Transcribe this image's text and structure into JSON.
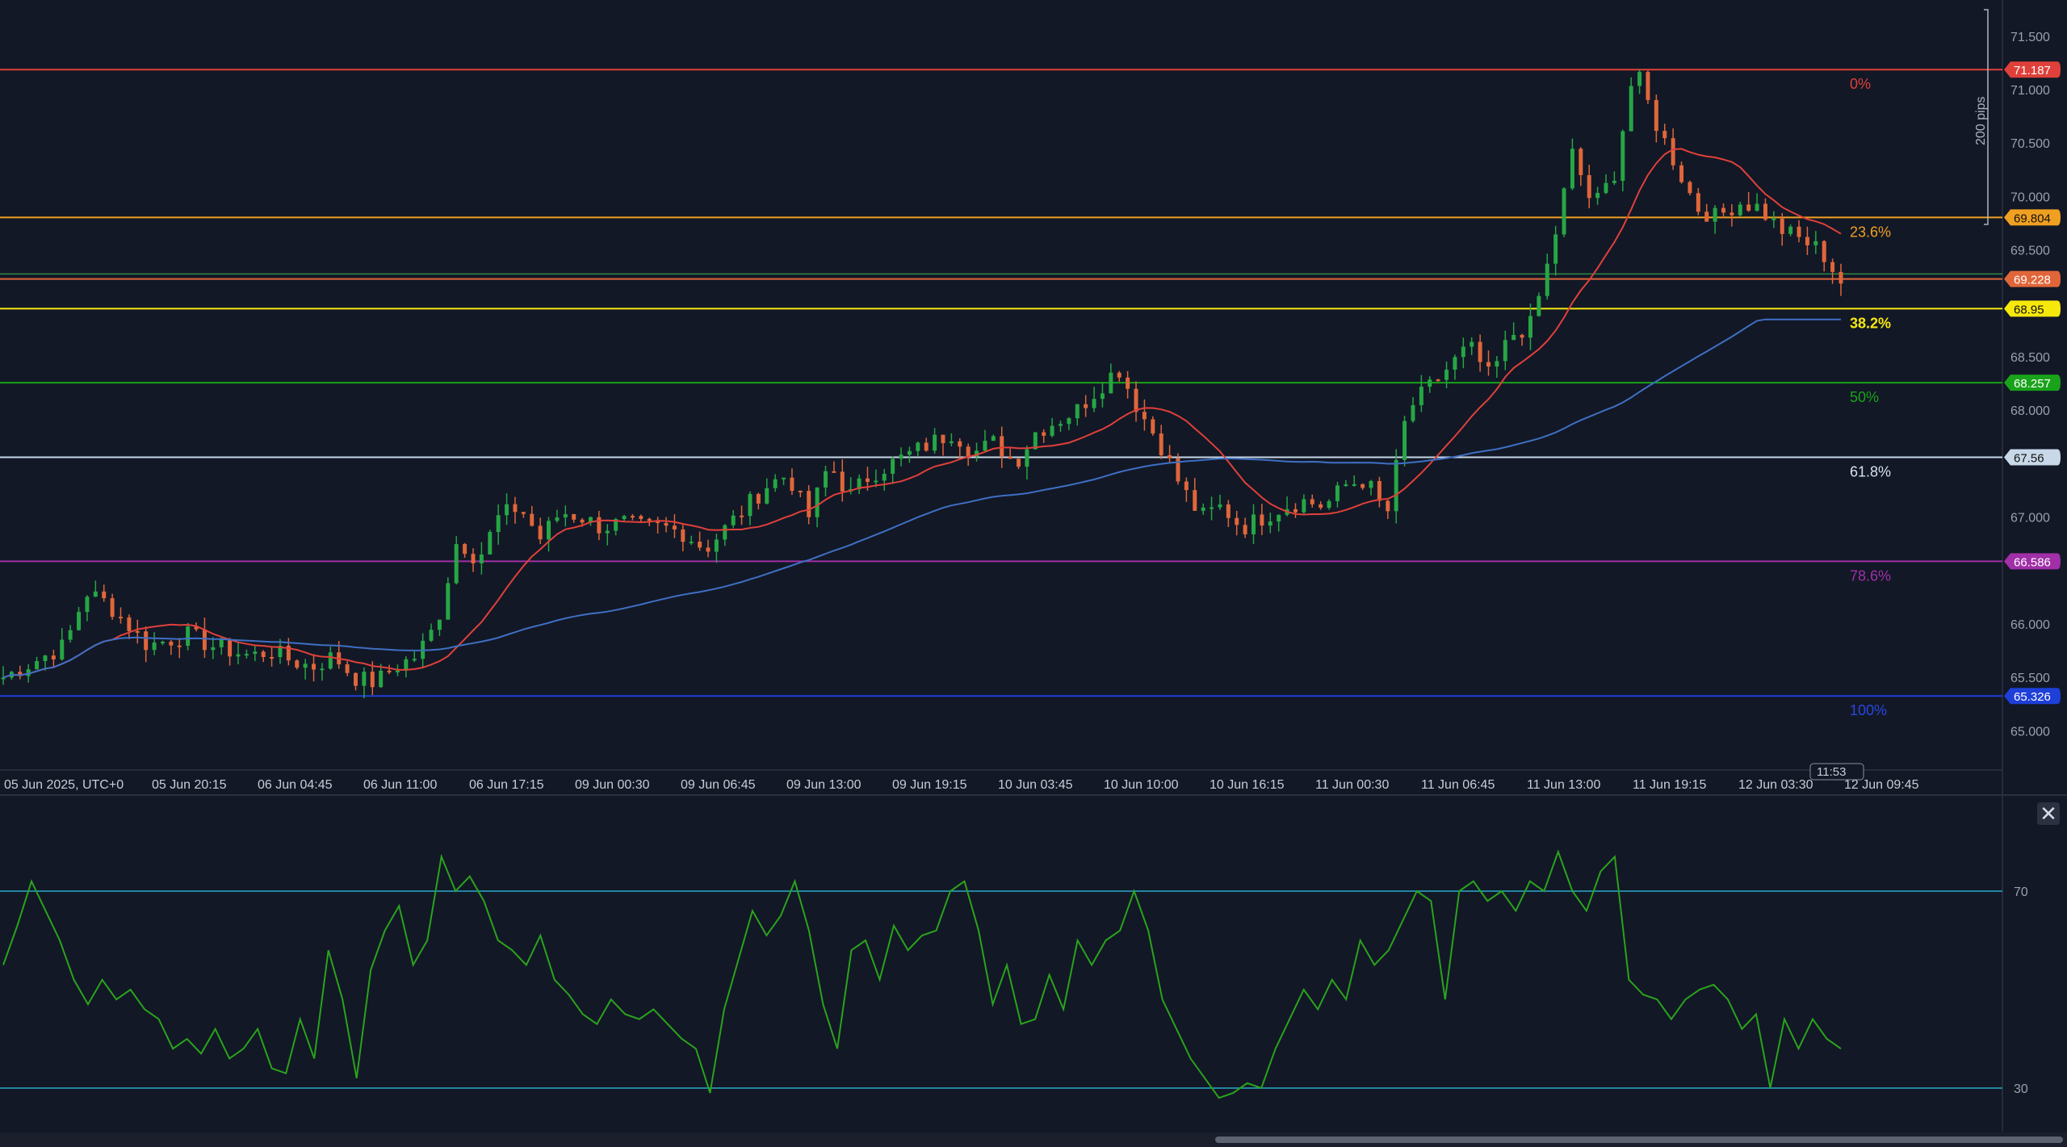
{
  "colors": {
    "background": "#121826",
    "grid_text": "#9aa0ab",
    "candle_up": "#26a645",
    "candle_down": "#e0663a",
    "ma_fast": "#e0403a",
    "ma_slow": "#3f6fc4",
    "rsi_line": "#2aa31c",
    "rsi_bands": "#29a9c9"
  },
  "chart_data": [
    {
      "type": "candlestick",
      "title": "",
      "x_tick_labels": [
        "05 Jun 2025, UTC+0",
        "05 Jun 20:15",
        "06 Jun 04:45",
        "06 Jun 11:00",
        "06 Jun 17:15",
        "09 Jun 00:30",
        "09 Jun 06:45",
        "09 Jun 13:00",
        "09 Jun 19:15",
        "10 Jun 03:45",
        "10 Jun 10:00",
        "10 Jun 16:15",
        "11 Jun 00:30",
        "11 Jun 06:45",
        "11 Jun 13:00",
        "11 Jun 19:15",
        "12 Jun 03:30",
        "12 Jun 09:45"
      ],
      "y_tick_labels": [
        "71.500",
        "71.000",
        "70.500",
        "70.000",
        "69.500",
        "68.500",
        "68.000",
        "67.000",
        "66.000",
        "65.500",
        "65.000"
      ],
      "ylim": [
        64.5,
        71.7
      ],
      "close_path": [
        65.5,
        65.6,
        65.7,
        65.8,
        66.3,
        66.2,
        66.0,
        65.8,
        65.85,
        65.9,
        65.8,
        65.75,
        65.7,
        65.75,
        65.65,
        65.6,
        65.7,
        65.5,
        65.45,
        65.6,
        65.7,
        66.0,
        66.8,
        66.6,
        67.0,
        67.1,
        66.8,
        67.05,
        67.0,
        66.9,
        66.95,
        66.9,
        66.9,
        66.85,
        66.7,
        66.9,
        67.1,
        67.3,
        67.4,
        67.0,
        67.5,
        67.2,
        67.4,
        67.5,
        67.6,
        67.7,
        67.8,
        67.6,
        67.7,
        67.5,
        67.8,
        67.9,
        68.0,
        68.2,
        68.4,
        68.0,
        67.7,
        67.3,
        67.0,
        67.1,
        66.9,
        67.0,
        67.1,
        67.15,
        67.1,
        67.3,
        67.35,
        67.0,
        68.0,
        68.2,
        68.4,
        68.6,
        68.3,
        68.7,
        68.8,
        69.5,
        70.4,
        69.9,
        70.2,
        71.2,
        70.7,
        70.3,
        69.9,
        69.8,
        69.95,
        69.9,
        69.7,
        69.6,
        69.5,
        69.2
      ],
      "series": [
        {
          "name": "",
          "kind": "moving_average_fast"
        },
        {
          "name": "",
          "kind": "moving_average_slow"
        }
      ],
      "levels": [
        {
          "label": "0%",
          "price": 71.187,
          "badge": "71.187",
          "color": "#e0403a",
          "label_color": "#e0403a"
        },
        {
          "label": "23.6%",
          "price": 69.804,
          "badge": "69.804",
          "color": "#f0a020",
          "label_color": "#f0a020"
        },
        {
          "label": "",
          "price": 69.228,
          "badge": "69.228",
          "color": "#e0663a",
          "label_color": "#e0663a"
        },
        {
          "label": "38.2%",
          "price": 68.95,
          "badge": "68.95",
          "color": "#f7e80c",
          "label_color": "#f7e80c"
        },
        {
          "label": "50%",
          "price": 68.257,
          "badge": "68.257",
          "color": "#19a21a",
          "label_color": "#19a21a"
        },
        {
          "label": "61.8%",
          "price": 67.56,
          "badge": "67.56",
          "color": "#c8d8e8",
          "label_color": "#d6e2ee"
        },
        {
          "label": "78.6%",
          "price": 66.586,
          "badge": "66.586",
          "color": "#a02fa8",
          "label_color": "#a02fa8"
        },
        {
          "label": "100%",
          "price": 65.326,
          "badge": "65.326",
          "color": "#1e3fd8",
          "label_color": "#2846e0"
        }
      ],
      "measure_label": "200 pips",
      "cursor_time": "11:53"
    },
    {
      "type": "line",
      "title": "",
      "y_tick_labels": [
        "70",
        "30"
      ],
      "ylim": [
        25,
        80
      ],
      "bands": [
        70,
        30
      ],
      "values": [
        55,
        63,
        72,
        66,
        60,
        52,
        47,
        52,
        48,
        50,
        46,
        44,
        38,
        40,
        37,
        42,
        36,
        38,
        42,
        34,
        33,
        44,
        36,
        58,
        48,
        32,
        54,
        62,
        67,
        55,
        60,
        77,
        70,
        73,
        68,
        60,
        58,
        55,
        61,
        52,
        49,
        45,
        43,
        48,
        45,
        44,
        46,
        43,
        40,
        38,
        29,
        46,
        56,
        66,
        61,
        65,
        72,
        62,
        47,
        38,
        58,
        60,
        52,
        63,
        58,
        61,
        62,
        70,
        72,
        62,
        47,
        55,
        43,
        44,
        53,
        46,
        60,
        55,
        60,
        62,
        70,
        62,
        48,
        42,
        36,
        32,
        28,
        29,
        31,
        30,
        38,
        44,
        50,
        46,
        52,
        48,
        60,
        55,
        58,
        64,
        70,
        68,
        48,
        70,
        72,
        68,
        70,
        66,
        72,
        70,
        78,
        70,
        66,
        74,
        77,
        52,
        49,
        48,
        44,
        48,
        50,
        51,
        48,
        42,
        45,
        30,
        44,
        38,
        44,
        40,
        38
      ]
    }
  ]
}
